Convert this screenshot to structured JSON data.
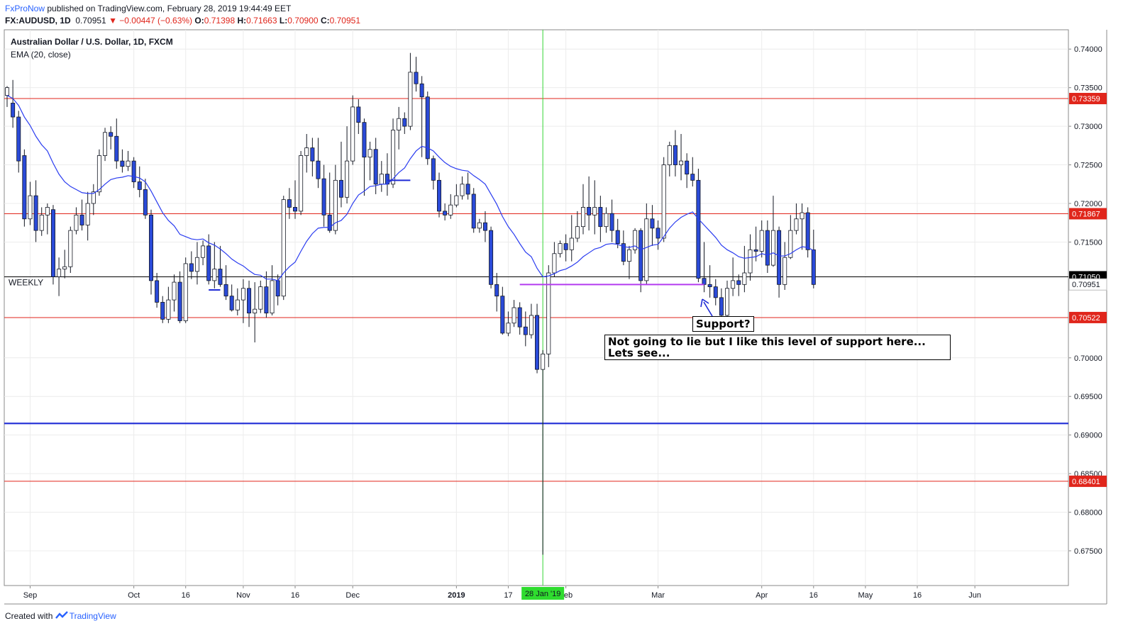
{
  "header": {
    "author": "FxProNow",
    "published": " published on TradingView.com, February 28, 2019 19:44:49 EET",
    "symbol": "FX:AUDUSD, 1D",
    "last": "0.70951",
    "change": "▼ −0.00447 (−0.63%)",
    "o_label": "O:",
    "o": "0.71398",
    "h_label": "H:",
    "h": "0.71663",
    "l_label": "L:",
    "l": "0.70900",
    "c_label": "C:",
    "c": "0.70951"
  },
  "footer": {
    "created": "Created with",
    "brand": "TradingView"
  },
  "colors": {
    "up": "#ffffff",
    "down": "#2a4ad8",
    "ema": "#2a3cf0",
    "hline": "#e0261c",
    "blue_line": "#1f2bd6",
    "support": "#b43cf0",
    "vline": "#34d534"
  },
  "chart_data": {
    "type": "candlestick",
    "title": "Australian Dollar / U.S. Dollar, 1D, FXCM",
    "indicator": "EMA (20, close)",
    "ylim": [
      0.6705,
      0.7425
    ],
    "y_ticks": [
      "0.74000",
      "0.73500",
      "0.73000",
      "0.72500",
      "0.72000",
      "0.71500",
      "0.70000",
      "0.69500",
      "0.69000",
      "0.68500",
      "0.68000",
      "0.67500"
    ],
    "x_ticks": [
      "Sep",
      "Oct",
      "16",
      "Nov",
      "16",
      "Dec",
      "2019",
      "17",
      "Feb",
      "Mar",
      "Apr",
      "16",
      "May",
      "16",
      "Jun"
    ],
    "x_tick_slots": [
      4,
      22,
      31,
      41,
      50,
      60,
      78,
      87,
      97,
      113,
      131,
      140,
      149,
      158,
      168
    ],
    "crosshair_label": "28 Jan '19",
    "crosshair_slot": 93,
    "horizontal_lines": [
      {
        "value": 0.73359,
        "label": "0.73359",
        "kind": "red"
      },
      {
        "value": 0.71867,
        "label": "0.71867",
        "kind": "red"
      },
      {
        "value": 0.7105,
        "label": "0.71050",
        "kind": "black",
        "text": "WEEKLY"
      },
      {
        "value": 0.70522,
        "label": "0.70522",
        "kind": "red"
      },
      {
        "value": 0.68401,
        "label": "0.68401",
        "kind": "red"
      },
      {
        "value": 0.6915,
        "label": "",
        "kind": "blue"
      }
    ],
    "last_price_label": "0.70951",
    "last_price": 0.70951,
    "support_line": {
      "value": 0.7095,
      "from_slot": 89,
      "to_slot": 121
    },
    "candles": [
      [
        0.734,
        0.735,
        0.7325,
        0.7352
      ],
      [
        0.733,
        0.7312,
        0.7298,
        0.736
      ],
      [
        0.7312,
        0.7255,
        0.724,
        0.732
      ],
      [
        0.7262,
        0.718,
        0.717,
        0.727
      ],
      [
        0.718,
        0.721,
        0.7172,
        0.7228
      ],
      [
        0.721,
        0.7165,
        0.715,
        0.723
      ],
      [
        0.7165,
        0.7185,
        0.7158,
        0.7195
      ],
      [
        0.7185,
        0.7195,
        0.716,
        0.72
      ],
      [
        0.7192,
        0.7105,
        0.7095,
        0.7198
      ],
      [
        0.7105,
        0.7115,
        0.708,
        0.713
      ],
      [
        0.7115,
        0.7118,
        0.7103,
        0.714
      ],
      [
        0.7118,
        0.7165,
        0.711,
        0.717
      ],
      [
        0.7165,
        0.7185,
        0.716,
        0.7195
      ],
      [
        0.7185,
        0.7172,
        0.7165,
        0.7205
      ],
      [
        0.7172,
        0.72,
        0.7152,
        0.7215
      ],
      [
        0.72,
        0.7215,
        0.7185,
        0.7225
      ],
      [
        0.7215,
        0.7262,
        0.721,
        0.727
      ],
      [
        0.7262,
        0.7292,
        0.7255,
        0.7298
      ],
      [
        0.7292,
        0.7287,
        0.727,
        0.73
      ],
      [
        0.7287,
        0.7255,
        0.7245,
        0.731
      ],
      [
        0.7255,
        0.7248,
        0.724,
        0.727
      ],
      [
        0.7248,
        0.7255,
        0.7242,
        0.7268
      ],
      [
        0.7255,
        0.7228,
        0.722,
        0.726
      ],
      [
        0.7228,
        0.7218,
        0.7208,
        0.7248
      ],
      [
        0.7218,
        0.7185,
        0.718,
        0.7232
      ],
      [
        0.7185,
        0.71,
        0.7082,
        0.7192
      ],
      [
        0.71,
        0.7072,
        0.7065,
        0.711
      ],
      [
        0.7072,
        0.705,
        0.7045,
        0.708
      ],
      [
        0.705,
        0.7075,
        0.7045,
        0.7092
      ],
      [
        0.7075,
        0.7098,
        0.706,
        0.7108
      ],
      [
        0.7098,
        0.7048,
        0.7045,
        0.7112
      ],
      [
        0.7048,
        0.7122,
        0.7045,
        0.713
      ],
      [
        0.7122,
        0.7112,
        0.7102,
        0.7138
      ],
      [
        0.7112,
        0.713,
        0.7095,
        0.715
      ],
      [
        0.713,
        0.7145,
        0.712,
        0.7152
      ],
      [
        0.7145,
        0.71,
        0.7095,
        0.716
      ],
      [
        0.71,
        0.7115,
        0.709,
        0.715
      ],
      [
        0.7115,
        0.7095,
        0.7092,
        0.7145
      ],
      [
        0.7095,
        0.708,
        0.7075,
        0.712
      ],
      [
        0.708,
        0.7062,
        0.706,
        0.7095
      ],
      [
        0.7062,
        0.7075,
        0.7055,
        0.709
      ],
      [
        0.7075,
        0.709,
        0.7045,
        0.7102
      ],
      [
        0.709,
        0.7058,
        0.704,
        0.71
      ],
      [
        0.7058,
        0.7063,
        0.702,
        0.7098
      ],
      [
        0.7063,
        0.7092,
        0.7058,
        0.71
      ],
      [
        0.7092,
        0.7058,
        0.7052,
        0.7112
      ],
      [
        0.7058,
        0.71,
        0.7055,
        0.712
      ],
      [
        0.71,
        0.708,
        0.7068,
        0.7108
      ],
      [
        0.708,
        0.7205,
        0.7075,
        0.721
      ],
      [
        0.7205,
        0.7195,
        0.718,
        0.722
      ],
      [
        0.7195,
        0.719,
        0.718,
        0.723
      ],
      [
        0.719,
        0.7262,
        0.7185,
        0.7268
      ],
      [
        0.7262,
        0.7272,
        0.724,
        0.729
      ],
      [
        0.7272,
        0.7255,
        0.7235,
        0.7285
      ],
      [
        0.7255,
        0.7232,
        0.722,
        0.7285
      ],
      [
        0.7232,
        0.7185,
        0.717,
        0.725
      ],
      [
        0.7185,
        0.7165,
        0.7162,
        0.724
      ],
      [
        0.7165,
        0.723,
        0.716,
        0.725
      ],
      [
        0.723,
        0.7208,
        0.7195,
        0.728
      ],
      [
        0.7208,
        0.7255,
        0.72,
        0.73
      ],
      [
        0.7255,
        0.7325,
        0.725,
        0.734
      ],
      [
        0.7325,
        0.7305,
        0.729,
        0.7335
      ],
      [
        0.7305,
        0.726,
        0.721,
        0.731
      ],
      [
        0.726,
        0.727,
        0.723,
        0.728
      ],
      [
        0.727,
        0.7225,
        0.7212,
        0.7285
      ],
      [
        0.7225,
        0.7238,
        0.7215,
        0.7255
      ],
      [
        0.7238,
        0.7225,
        0.721,
        0.7265
      ],
      [
        0.7225,
        0.7295,
        0.722,
        0.731
      ],
      [
        0.7295,
        0.731,
        0.727,
        0.7325
      ],
      [
        0.731,
        0.73,
        0.729,
        0.7318
      ],
      [
        0.73,
        0.737,
        0.7295,
        0.7395
      ],
      [
        0.737,
        0.7355,
        0.7345,
        0.739
      ],
      [
        0.7355,
        0.7338,
        0.726,
        0.7365
      ],
      [
        0.7338,
        0.7258,
        0.725,
        0.7345
      ],
      [
        0.7258,
        0.723,
        0.7218,
        0.7262
      ],
      [
        0.723,
        0.719,
        0.7182,
        0.724
      ],
      [
        0.719,
        0.7185,
        0.7178,
        0.72
      ],
      [
        0.7185,
        0.7198,
        0.718,
        0.7212
      ],
      [
        0.7198,
        0.721,
        0.7195,
        0.7225
      ],
      [
        0.721,
        0.7225,
        0.7205,
        0.7235
      ],
      [
        0.7225,
        0.7212,
        0.7205,
        0.724
      ],
      [
        0.7212,
        0.7168,
        0.7162,
        0.722
      ],
      [
        0.7168,
        0.7175,
        0.7162,
        0.718
      ],
      [
        0.7175,
        0.7165,
        0.715,
        0.719
      ],
      [
        0.7165,
        0.7095,
        0.709,
        0.717
      ],
      [
        0.7095,
        0.708,
        0.706,
        0.711
      ],
      [
        0.708,
        0.7032,
        0.703,
        0.7092
      ],
      [
        0.7032,
        0.7045,
        0.7028,
        0.706
      ],
      [
        0.7045,
        0.7065,
        0.704,
        0.7075
      ],
      [
        0.7065,
        0.704,
        0.703,
        0.7072
      ],
      [
        0.704,
        0.703,
        0.7015,
        0.706
      ],
      [
        0.703,
        0.7055,
        0.7025,
        0.707
      ],
      [
        0.7055,
        0.6985,
        0.698,
        0.707
      ],
      [
        0.6985,
        0.7005,
        0.6745,
        0.701
      ],
      [
        0.7005,
        0.711,
        0.6988,
        0.712
      ],
      [
        0.711,
        0.7135,
        0.7105,
        0.715
      ],
      [
        0.7135,
        0.7148,
        0.713,
        0.7152
      ],
      [
        0.7148,
        0.714,
        0.7125,
        0.716
      ],
      [
        0.714,
        0.7155,
        0.7125,
        0.7185
      ],
      [
        0.7155,
        0.717,
        0.715,
        0.719
      ],
      [
        0.717,
        0.7195,
        0.716,
        0.7225
      ],
      [
        0.7195,
        0.7185,
        0.7165,
        0.7235
      ],
      [
        0.7185,
        0.7195,
        0.716,
        0.723
      ],
      [
        0.7195,
        0.717,
        0.715,
        0.721
      ],
      [
        0.717,
        0.7187,
        0.7162,
        0.7195
      ],
      [
        0.7187,
        0.7165,
        0.715,
        0.7205
      ],
      [
        0.7165,
        0.7148,
        0.7142,
        0.718
      ],
      [
        0.7148,
        0.7125,
        0.712,
        0.7165
      ],
      [
        0.7125,
        0.714,
        0.7102,
        0.7145
      ],
      [
        0.714,
        0.7165,
        0.7135,
        0.7168
      ],
      [
        0.7165,
        0.71,
        0.7085,
        0.7168
      ],
      [
        0.71,
        0.718,
        0.7095,
        0.72
      ],
      [
        0.718,
        0.7168,
        0.7145,
        0.7198
      ],
      [
        0.7168,
        0.7155,
        0.714,
        0.7178
      ],
      [
        0.7155,
        0.725,
        0.715,
        0.726
      ],
      [
        0.725,
        0.7275,
        0.7235,
        0.728
      ],
      [
        0.7275,
        0.725,
        0.7235,
        0.7295
      ],
      [
        0.725,
        0.7255,
        0.723,
        0.729
      ],
      [
        0.7255,
        0.7238,
        0.722,
        0.7265
      ],
      [
        0.7238,
        0.723,
        0.7222,
        0.726
      ],
      [
        0.723,
        0.7103,
        0.7098,
        0.7245
      ],
      [
        0.7103,
        0.7095,
        0.7085,
        0.715
      ],
      [
        0.7095,
        0.7092,
        0.7078,
        0.712
      ],
      [
        0.7092,
        0.7078,
        0.7068,
        0.7102
      ],
      [
        0.7078,
        0.7055,
        0.705,
        0.709
      ],
      [
        0.7055,
        0.709,
        0.705,
        0.71
      ],
      [
        0.709,
        0.71,
        0.708,
        0.713
      ],
      [
        0.71,
        0.7095,
        0.708,
        0.7108
      ],
      [
        0.7095,
        0.711,
        0.7085,
        0.7145
      ],
      [
        0.711,
        0.714,
        0.71,
        0.716
      ],
      [
        0.714,
        0.7138,
        0.7125,
        0.717
      ],
      [
        0.7138,
        0.7165,
        0.713,
        0.7178
      ],
      [
        0.7165,
        0.712,
        0.711,
        0.7178
      ],
      [
        0.712,
        0.7165,
        0.7118,
        0.721
      ],
      [
        0.7165,
        0.7095,
        0.7078,
        0.717
      ],
      [
        0.7095,
        0.713,
        0.7088,
        0.715
      ],
      [
        0.713,
        0.7165,
        0.7128,
        0.7185
      ],
      [
        0.7165,
        0.718,
        0.716,
        0.72
      ],
      [
        0.718,
        0.7188,
        0.714,
        0.72
      ],
      [
        0.7188,
        0.714,
        0.713,
        0.7195
      ],
      [
        0.714,
        0.7095,
        0.709,
        0.7166
      ]
    ],
    "ema": [
      0.734,
      0.7336,
      0.7327,
      0.7312,
      0.7301,
      0.7287,
      0.7276,
      0.7268,
      0.7252,
      0.7238,
      0.7228,
      0.7222,
      0.7218,
      0.7214,
      0.7213,
      0.7213,
      0.7218,
      0.7225,
      0.7231,
      0.7233,
      0.7234,
      0.7236,
      0.7235,
      0.7233,
      0.7228,
      0.7216,
      0.7202,
      0.7188,
      0.7178,
      0.7171,
      0.716,
      0.7157,
      0.7154,
      0.7153,
      0.7154,
      0.7149,
      0.7146,
      0.7141,
      0.7135,
      0.7128,
      0.7123,
      0.7119,
      0.7113,
      0.7108,
      0.7107,
      0.7102,
      0.7102,
      0.71,
      0.711,
      0.7118,
      0.7124,
      0.7138,
      0.7151,
      0.7161,
      0.7168,
      0.7169,
      0.7169,
      0.7175,
      0.7178,
      0.7186,
      0.72,
      0.7211,
      0.7216,
      0.7222,
      0.7223,
      0.7225,
      0.7225,
      0.7232,
      0.724,
      0.7246,
      0.7258,
      0.7268,
      0.7274,
      0.7272,
      0.7268,
      0.726,
      0.7253,
      0.7248,
      0.7245,
      0.7243,
      0.7242,
      0.7236,
      0.7231,
      0.7225,
      0.7212,
      0.7199,
      0.7183,
      0.717,
      0.716,
      0.7148,
      0.7137,
      0.7131,
      0.7116,
      0.7105,
      0.7106,
      0.7109,
      0.7113,
      0.7115,
      0.7119,
      0.7124,
      0.7131,
      0.7136,
      0.7141,
      0.7143,
      0.7147,
      0.7148,
      0.7147,
      0.7144,
      0.7143,
      0.7145,
      0.714,
      0.7143,
      0.7146,
      0.7147,
      0.7157,
      0.7168,
      0.7176,
      0.7182,
      0.7186,
      0.7189,
      0.718,
      0.7172,
      0.7164,
      0.7156,
      0.7146,
      0.714,
      0.7136,
      0.7131,
      0.7129,
      0.713,
      0.7131,
      0.7135,
      0.7133,
      0.7136,
      0.7132,
      0.7132,
      0.7135,
      0.714,
      0.7144,
      0.7143,
      0.7139
    ],
    "blue_segments": [
      {
        "from_slot": 66,
        "to_slot": 70,
        "value": 0.723
      },
      {
        "from_slot": 35,
        "to_slot": 37,
        "value": 0.7088
      }
    ],
    "annotations": [
      {
        "id": "support",
        "text": "Support?"
      },
      {
        "id": "comment",
        "line1": "Not going to lie but I like this level of support here...",
        "line2": "Lets see..."
      }
    ]
  }
}
